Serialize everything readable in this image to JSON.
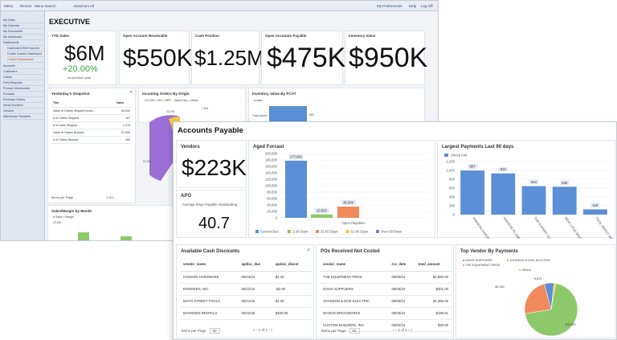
{
  "topbar": {
    "menu": "Menu",
    "recent": "Recent",
    "menu_search": "Menu Search",
    "context": "Aluminum All",
    "prefs": "My Preferences",
    "help": "Help",
    "logout": "Log Off"
  },
  "sidebar": {
    "items": [
      "My Tasks",
      "My Calendar",
      "My Documents",
      "My Dashboard",
      "Dashboards",
      "Dashboard Web Sources",
      "Create Custom Dashboard",
      "Custom Dashboards",
      "Accounts",
      "Customers",
      "Orders",
      "Field Requests",
      "Product Warehouses",
      "Products",
      "Purchase Orders",
      "Serial Numbers",
      "Vendors",
      "Warehouse Transfers"
    ]
  },
  "executive": {
    "title": "EXECUTIVE",
    "ytd_label": "YTD Sales",
    "ytd_value": "$6M",
    "ytd_change": "+20.00%",
    "ytd_sub": "vs previous year",
    "ar_label": "Open Account Receivable",
    "ar_value": "$550K",
    "cash_label": "Cash Position",
    "cash_value": "$1.25M",
    "ap_label": "Open Accounts Payable",
    "ap_value": "$475K",
    "inv_label": "Inventory Value",
    "inv_value": "$950K",
    "snapshot_title": "Yesterday's Snapshot",
    "snapshot_headers": [
      "Title",
      "Value"
    ],
    "snapshot_rows": [
      [
        "Value of Orders Shipped Invoic...",
        "40,000"
      ],
      [
        "# of Orders Shipped",
        "167"
      ],
      [
        "# of Lines Shipped",
        "1,375"
      ],
      [
        "Value of Orders Booked",
        "57,000"
      ],
      [
        "# of Orders Booked",
        "283"
      ]
    ],
    "snapshot_pager": "Items per Page",
    "snapshot_page": "1 of 1",
    "origin_title": "Incoming Orders By Origin",
    "origin_legend": [
      "ECOM",
      "EDI",
      "MPF",
      "Daily Entry",
      "Mixed"
    ],
    "origin_labels": [
      "13.4%",
      "7.6%",
      "21.3%"
    ],
    "invpcat_title": "Inventory Value By PCAT",
    "invpcat_legend": "value",
    "invpcat_cat": "Tools Assort...",
    "invpcat_val": "500",
    "sales_title": "Sales/Margin by Month",
    "sales_legend": [
      "Sales",
      "Margin"
    ],
    "sales_ylabel": "20,000"
  },
  "ap": {
    "title": "Accounts Payable",
    "vendors_label": "Vendors",
    "vendors_value": "$223K",
    "apo_label": "APO",
    "apo_sub": "Average Days Payable Outstanding",
    "apo_value": "40.7",
    "aged_title": "Aged Forcast",
    "aged_xlabel": "Open Payables",
    "aged_legend": [
      "Current Due",
      "1-30 Days",
      "31-60 Days",
      "61-90 Days",
      "Over 90 Days"
    ],
    "largest_title": "Largest Payments Last 90 days",
    "largest_legend": "Check Amt",
    "cash_disc_title": "Available Cash Discounts",
    "cash_disc_headers": [
      "vendor_name",
      "apdisc_due",
      "apdisc_discnt"
    ],
    "cash_disc_rows": [
      [
        "HANSON HARDWARE",
        "06/04/24",
        "$2.40"
      ],
      [
        "RODGERS, INC.",
        "05/12/24",
        "-$2.00"
      ],
      [
        "MAYO STREET TOOLS",
        "05/21/25",
        "$1.30"
      ],
      [
        "MARSDEN RENTALS",
        "06/22/25",
        "$400.00"
      ]
    ],
    "cash_disc_pager": "Items per Page",
    "cash_disc_pagesize": "50",
    "cash_disc_page": "1 of 1",
    "po_title": "POs Received Not Costed",
    "po_headers": [
      "vendor_name",
      "rcv_date",
      "total_amount"
    ],
    "po_rows": [
      [
        "THE EQUIPMENT PROS",
        "06/05/24",
        "$1,850.00"
      ],
      [
        "DAVIS SUPPLIERS",
        "06/05/24",
        "$301.00"
      ],
      [
        "JOHNSON & DOE ELECTRIC",
        "06/05/24",
        "$4,356.00"
      ],
      [
        "MASON BRICKWORKS",
        "05/03/24",
        "$185.61"
      ],
      [
        "CUSTOM BUILDERS, INC.",
        "05/02/24",
        "$25.00"
      ]
    ],
    "po_pager": "Items per Page",
    "po_pagesize": "50",
    "po_page": "1 of 1",
    "topvendor_title": "Top Vendor By Payments",
    "topvendor_legend": [
      "DAVIS SUPPLIERS",
      "JOHNSON & DOE ELECTRIC",
      "THE EQUIPMENT PROS",
      "Others"
    ],
    "topvendor_labels": [
      "40,130",
      "9,872",
      "119,026"
    ]
  },
  "chart_data": [
    {
      "type": "bar",
      "title": "Aged Forcast",
      "xlabel": "Open Payables",
      "ylim": [
        0,
        200000
      ],
      "yticks": [
        "200,000",
        "180,000",
        "160,000",
        "140,000",
        "120,000",
        "100,000",
        "80,000",
        "60,000",
        "40,000",
        "20,000",
        "0"
      ],
      "series": [
        {
          "name": "Current Due",
          "values": [
            177681
          ],
          "label": "177,681",
          "color": "#5b8fd6"
        },
        {
          "name": "1-30 Days",
          "values": [
            10550
          ],
          "label": "10,550",
          "color": "#8cc96a"
        },
        {
          "name": "31-60 Days",
          "values": [
            35000
          ],
          "label": "35,000",
          "color": "#f08a5d"
        },
        {
          "name": "61-90 Days",
          "values": [
            0
          ],
          "label": "",
          "color": "#f4c542"
        },
        {
          "name": "Over 90 Days",
          "values": [
            0
          ],
          "label": "",
          "color": "#9b6fd6"
        }
      ]
    },
    {
      "type": "bar",
      "title": "Largest Payments Last 90 days",
      "ylim": [
        0,
        1200
      ],
      "yticks": [
        "1,200",
        "1,000",
        "800",
        "600",
        "400",
        "200",
        "0"
      ],
      "categories": [
        "HANSON HARDWARE",
        "HANSON PLUMBING",
        "THE EXPERT SUPPLIERS",
        "NEW LOOK BRICK",
        "TOOL DEPOT INC"
      ],
      "values": [
        997,
        932,
        644,
        630,
        119
      ],
      "labels": [
        "997",
        "932",
        "644",
        "630",
        "119"
      ],
      "color": "#5b8fd6"
    },
    {
      "type": "pie",
      "title": "Top Vendor By Payments",
      "categories": [
        "DAVIS SUPPLIERS",
        "JOHNSON & DOE ELECTRIC",
        "THE EQUIPMENT PROS",
        "Others"
      ],
      "values": [
        9872,
        119026,
        40130,
        2000
      ],
      "colors": [
        "#5b8fd6",
        "#8cc96a",
        "#f08a5d",
        "#f4c542"
      ]
    }
  ]
}
